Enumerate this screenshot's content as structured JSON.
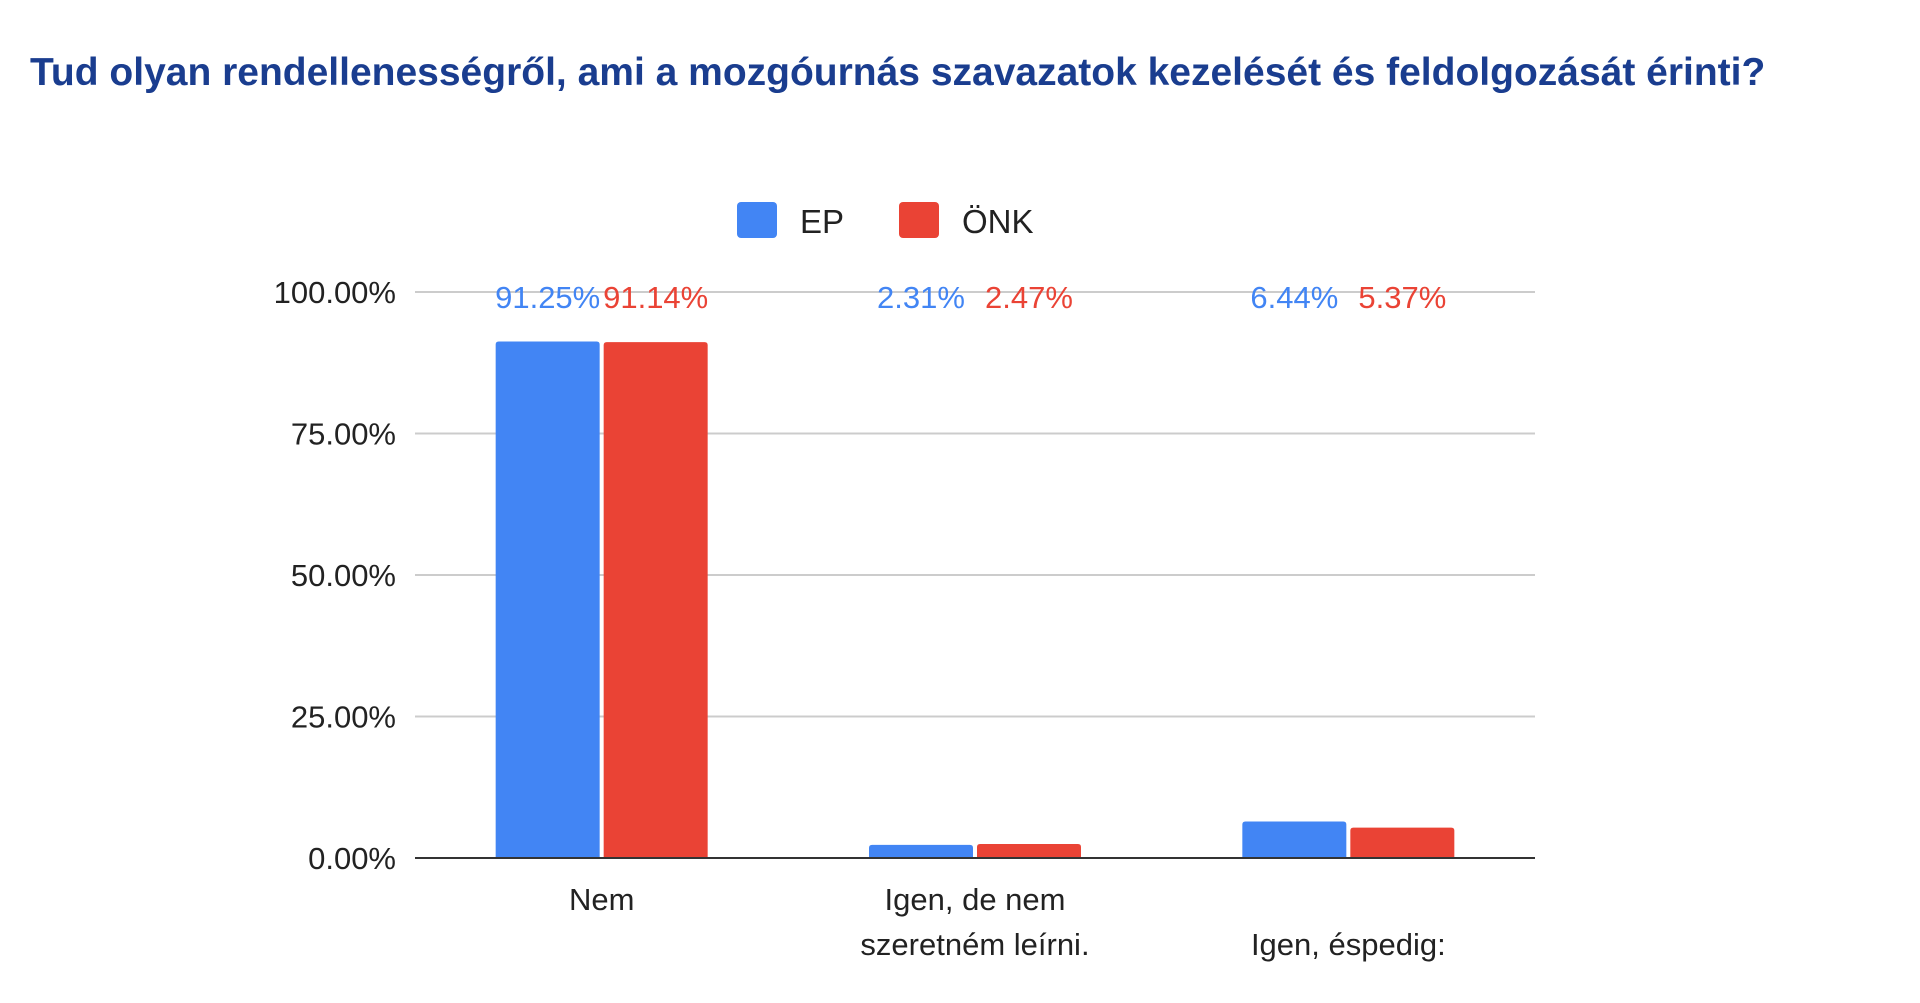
{
  "page": {
    "title": "Tud olyan rendellenességről, ami a mozgóurnás szavazatok kezelését és feldolgozását érinti?"
  },
  "chart_data": {
    "type": "bar",
    "categories": [
      [
        "Nem"
      ],
      [
        "Igen, de nem",
        "szeretném leírni."
      ],
      [
        "Igen, éspedig:"
      ]
    ],
    "series": [
      {
        "name": "EP",
        "color": "#4285f4",
        "values": [
          91.25,
          2.31,
          6.44
        ],
        "labels": [
          "91.25%",
          "2.31%",
          "6.44%"
        ]
      },
      {
        "name": "ÖNK",
        "color": "#ea4335",
        "values": [
          91.14,
          2.47,
          5.37
        ],
        "labels": [
          "91.14%",
          "2.47%",
          "5.37%"
        ]
      }
    ],
    "ylim": [
      0,
      100
    ],
    "yticks": [
      0,
      25,
      50,
      75,
      100
    ],
    "ytick_labels": [
      "0.00%",
      "25.00%",
      "50.00%",
      "75.00%",
      "100.00%"
    ],
    "grid": true,
    "legend_position": "top",
    "xlabel": "",
    "ylabel": ""
  }
}
